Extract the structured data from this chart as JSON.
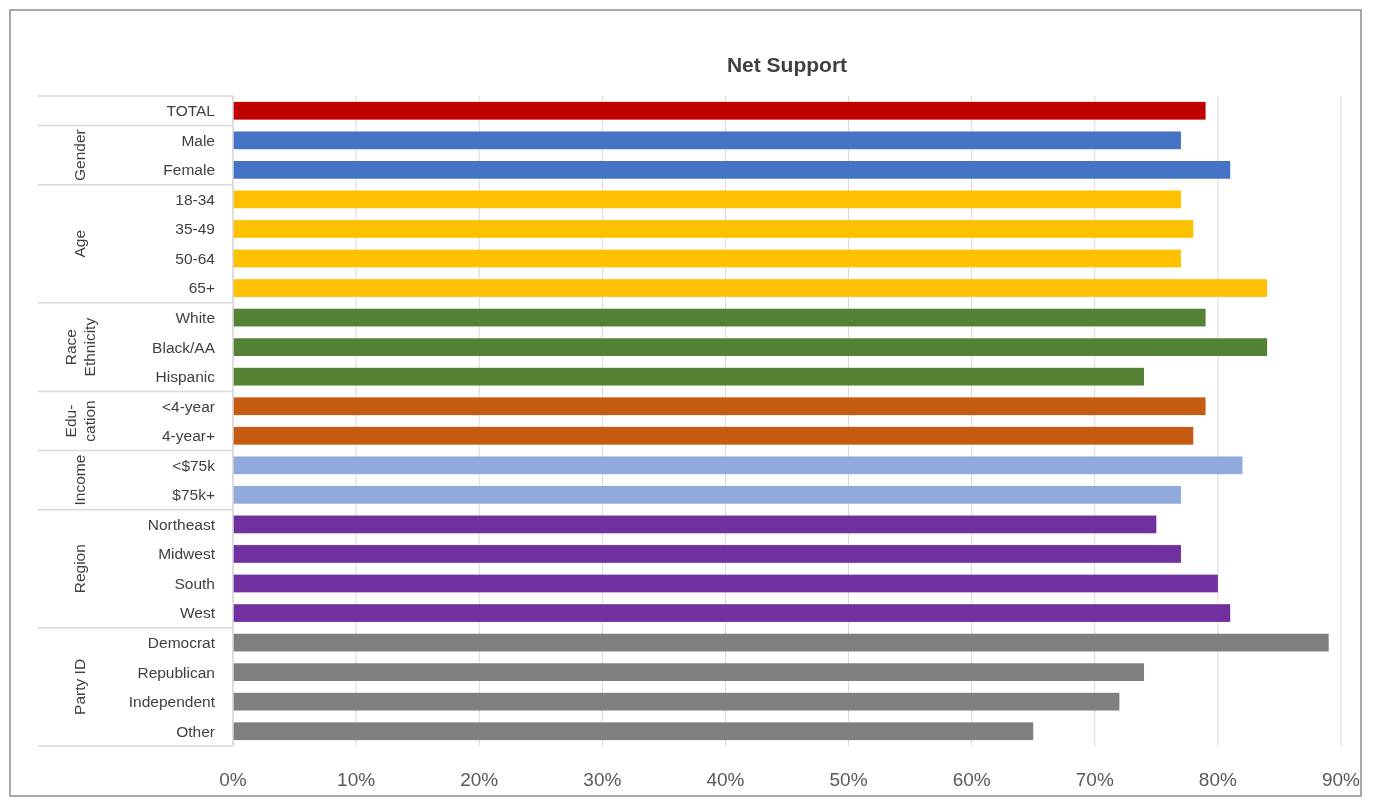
{
  "chart_data": {
    "type": "bar",
    "orientation": "horizontal",
    "title": "Net Support",
    "categories": [
      "TOTAL",
      "Male",
      "Female",
      "18-34",
      "35-49",
      "50-64",
      "65+",
      "White",
      "Black/AA",
      "Hispanic",
      "<4-year",
      "4-year+",
      "<$75k",
      "$75k+",
      "Northeast",
      "Midwest",
      "South",
      "West",
      "Democrat",
      "Republican",
      "Independent",
      "Other"
    ],
    "values": [
      79,
      77,
      81,
      77,
      78,
      77,
      84,
      79,
      84,
      74,
      79,
      78,
      82,
      77,
      75,
      77,
      80,
      81,
      89,
      74,
      72,
      65
    ],
    "colors": [
      "#c00000",
      "#4472c4",
      "#4472c4",
      "#ffc000",
      "#ffc000",
      "#ffc000",
      "#ffc000",
      "#548235",
      "#548235",
      "#548235",
      "#c55a11",
      "#c55a11",
      "#8faadc",
      "#8faadc",
      "#7030a0",
      "#7030a0",
      "#7030a0",
      "#7030a0",
      "#7f7f7f",
      "#7f7f7f",
      "#7f7f7f",
      "#7f7f7f"
    ],
    "annotations": [
      "Gender",
      "Age",
      "Race\nEthnicity",
      "Edu-\ncation",
      "Income",
      "Region",
      "Party ID"
    ],
    "xlim": [
      0,
      90
    ],
    "xticks": [
      {
        "value": 0,
        "label": "0%"
      },
      {
        "value": 10,
        "label": "10%"
      },
      {
        "value": 20,
        "label": "20%"
      },
      {
        "value": 30,
        "label": "30%"
      },
      {
        "value": 40,
        "label": "40%"
      },
      {
        "value": 50,
        "label": "50%"
      },
      {
        "value": 60,
        "label": "60%"
      },
      {
        "value": 70,
        "label": "70%"
      },
      {
        "value": 80,
        "label": "80%"
      },
      {
        "value": 90,
        "label": "90%"
      }
    ],
    "grid": "x"
  }
}
